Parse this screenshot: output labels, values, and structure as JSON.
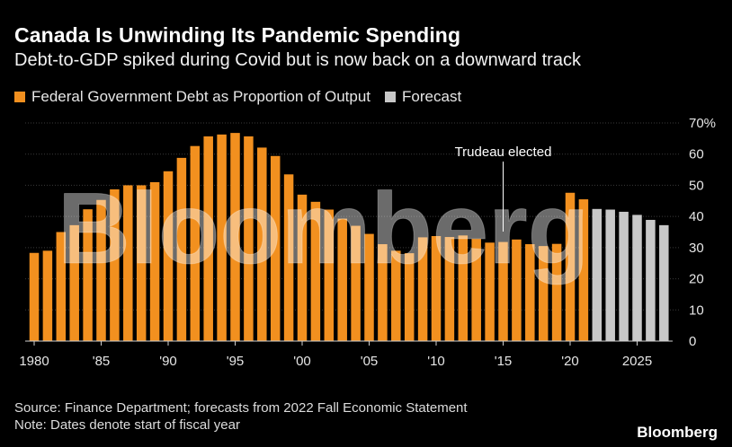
{
  "header": {
    "title": "Canada Is Unwinding Its Pandemic Spending",
    "subtitle": "Debt-to-GDP spiked during Covid but is now back on a downward track"
  },
  "legend": [
    {
      "label": "Federal Government Debt as Proportion of Output",
      "color": "#f2901f"
    },
    {
      "label": "Forecast",
      "color": "#c8c8c8"
    }
  ],
  "footer": {
    "source": "Source: Finance Department; forecasts from 2022 Fall Economic Statement",
    "note": "Note: Dates denote start of fiscal year"
  },
  "brand": "Bloomberg",
  "watermark": "Bloomberg",
  "chart_data": {
    "type": "bar",
    "x": [
      1980,
      1981,
      1982,
      1983,
      1984,
      1985,
      1986,
      1987,
      1988,
      1989,
      1990,
      1991,
      1992,
      1993,
      1994,
      1995,
      1996,
      1997,
      1998,
      1999,
      2000,
      2001,
      2002,
      2003,
      2004,
      2005,
      2006,
      2007,
      2008,
      2009,
      2010,
      2011,
      2012,
      2013,
      2014,
      2015,
      2016,
      2017,
      2018,
      2019,
      2020,
      2021,
      2022,
      2023,
      2024,
      2025,
      2026,
      2027
    ],
    "series": [
      {
        "name": "Federal Government Debt as Proportion of Output",
        "color": "#f2901f",
        "values": [
          28.3,
          29.0,
          35.0,
          37.2,
          42.3,
          45.3,
          48.7,
          50.0,
          50.0,
          51.0,
          54.5,
          58.8,
          62.6,
          65.7,
          66.3,
          66.8,
          65.7,
          62.1,
          59.4,
          53.5,
          47.0,
          44.7,
          42.2,
          39.3,
          37.0,
          34.4,
          31.1,
          29.0,
          28.2,
          33.3,
          33.7,
          33.4,
          33.9,
          32.8,
          31.6,
          31.8,
          32.6,
          31.1,
          30.5,
          31.2,
          47.6,
          45.5,
          null,
          null,
          null,
          null,
          null,
          null
        ]
      },
      {
        "name": "Forecast",
        "color": "#c8c8c8",
        "values": [
          null,
          null,
          null,
          null,
          null,
          null,
          null,
          null,
          null,
          null,
          null,
          null,
          null,
          null,
          null,
          null,
          null,
          null,
          null,
          null,
          null,
          null,
          null,
          null,
          null,
          null,
          null,
          null,
          null,
          null,
          null,
          null,
          null,
          null,
          null,
          null,
          null,
          null,
          null,
          null,
          null,
          null,
          42.4,
          42.2,
          41.5,
          40.5,
          38.9,
          37.2
        ]
      }
    ],
    "x_ticks": [
      {
        "year": 1980,
        "label": "1980"
      },
      {
        "year": 1985,
        "label": "'85"
      },
      {
        "year": 1990,
        "label": "'90"
      },
      {
        "year": 1995,
        "label": "'95"
      },
      {
        "year": 2000,
        "label": "'00"
      },
      {
        "year": 2005,
        "label": "'05"
      },
      {
        "year": 2010,
        "label": "'10"
      },
      {
        "year": 2015,
        "label": "'15"
      },
      {
        "year": 2020,
        "label": "'20"
      },
      {
        "year": 2025,
        "label": "2025"
      }
    ],
    "y_ticks": [
      {
        "value": 0,
        "label": "0"
      },
      {
        "value": 10,
        "label": "10"
      },
      {
        "value": 20,
        "label": "20"
      },
      {
        "value": 30,
        "label": "30"
      },
      {
        "value": 40,
        "label": "40"
      },
      {
        "value": 50,
        "label": "50"
      },
      {
        "value": 60,
        "label": "60"
      },
      {
        "value": 70,
        "label": "70%"
      }
    ],
    "ylim": [
      0,
      70
    ],
    "y_axis_side": "right",
    "grid": true,
    "annotation": {
      "text": "Trudeau elected",
      "year": 2015
    }
  }
}
